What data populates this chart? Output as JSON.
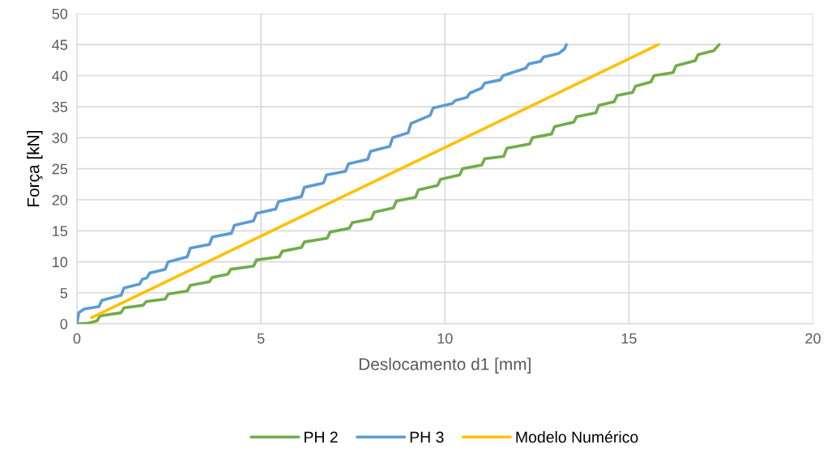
{
  "chart_data": {
    "type": "line",
    "xlabel": "Deslocamento d1 [mm]",
    "ylabel": "Força [kN]",
    "xlim": [
      0,
      20
    ],
    "xticks": [
      0,
      5,
      10,
      15,
      20
    ],
    "ylim": [
      0,
      50
    ],
    "yticks": [
      0,
      5,
      10,
      15,
      20,
      25,
      30,
      35,
      40,
      45,
      50
    ],
    "grid": true,
    "legend": "bottom",
    "marker": "none",
    "line_style": "solid",
    "series": [
      {
        "name": "PH 2",
        "color": "#70ad47",
        "x": [
          0,
          0.3,
          0.55,
          0.63,
          1.2,
          1.28,
          1.8,
          1.88,
          2.4,
          2.48,
          3.0,
          3.08,
          3.6,
          3.68,
          4.1,
          4.18,
          4.8,
          4.88,
          5.5,
          5.58,
          6.1,
          6.18,
          6.8,
          6.88,
          7.4,
          7.48,
          8.0,
          8.08,
          8.6,
          8.68,
          9.2,
          9.28,
          9.8,
          9.88,
          10.4,
          10.48,
          11.0,
          11.08,
          11.6,
          11.68,
          12.3,
          12.38,
          12.9,
          12.98,
          13.5,
          13.58,
          14.1,
          14.18,
          14.6,
          14.68,
          15.1,
          15.18,
          15.6,
          15.68,
          16.2,
          16.28,
          16.8,
          16.88,
          17.3,
          17.45
        ],
        "values": [
          0,
          0.1,
          0.5,
          1.3,
          1.8,
          2.6,
          3.0,
          3.6,
          4.0,
          4.8,
          5.3,
          6.2,
          6.8,
          7.5,
          8.0,
          8.8,
          9.3,
          10.3,
          10.8,
          11.7,
          12.3,
          13.2,
          13.8,
          14.8,
          15.4,
          16.3,
          16.9,
          18.0,
          18.7,
          19.8,
          20.4,
          21.6,
          22.3,
          23.3,
          24.0,
          25.0,
          25.6,
          26.6,
          27.0,
          28.3,
          29.0,
          30.0,
          30.6,
          31.8,
          32.5,
          33.4,
          34.0,
          35.2,
          35.8,
          36.8,
          37.3,
          38.3,
          39.0,
          40.0,
          40.5,
          41.6,
          42.4,
          43.4,
          44.0,
          45.0
        ]
      },
      {
        "name": "PH 3",
        "color": "#5b9bd5",
        "x": [
          0,
          0.05,
          0.2,
          0.6,
          0.68,
          1.2,
          1.28,
          1.7,
          1.78,
          1.9,
          1.98,
          2.4,
          2.48,
          3.0,
          3.08,
          3.6,
          3.68,
          4.2,
          4.28,
          4.8,
          4.88,
          5.4,
          5.48,
          6.1,
          6.18,
          6.7,
          6.78,
          7.3,
          7.38,
          7.9,
          7.98,
          8.5,
          8.58,
          9.0,
          9.08,
          9.6,
          9.68,
          10.2,
          10.28,
          10.6,
          10.68,
          11.0,
          11.08,
          11.5,
          11.58,
          12.2,
          12.28,
          12.6,
          12.68,
          13.1,
          13.25,
          13.3
        ],
        "values": [
          0,
          1.8,
          2.4,
          2.8,
          3.8,
          4.6,
          5.8,
          6.4,
          7.2,
          7.4,
          8.2,
          8.8,
          10.0,
          10.8,
          12.2,
          12.8,
          14.0,
          14.6,
          15.9,
          16.6,
          17.8,
          18.5,
          19.7,
          20.5,
          22.0,
          22.7,
          24.0,
          24.6,
          25.8,
          26.5,
          27.8,
          28.6,
          30.0,
          30.8,
          32.3,
          33.6,
          34.8,
          35.5,
          36.0,
          36.5,
          37.2,
          38.0,
          38.8,
          39.3,
          40.0,
          41.2,
          41.9,
          42.3,
          43.0,
          43.6,
          44.3,
          45.0
        ]
      },
      {
        "name": "Modelo Numérico",
        "color": "#ffc000",
        "x": [
          0.4,
          15.8
        ],
        "values": [
          1,
          45
        ]
      }
    ]
  }
}
